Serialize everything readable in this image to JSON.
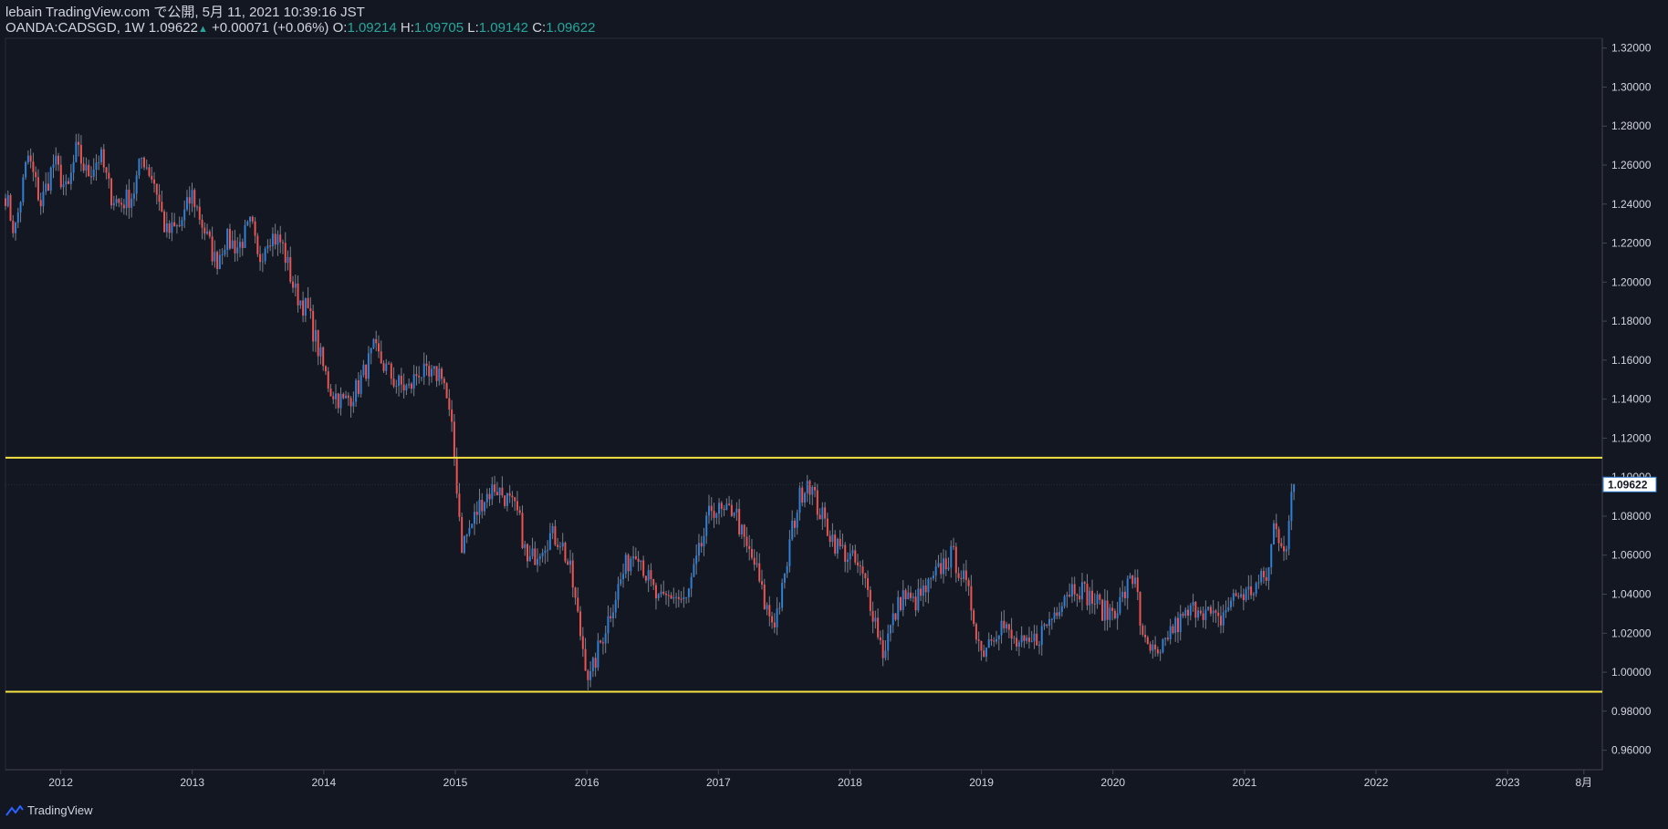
{
  "header": {
    "publisher_line": "lebain TradingView.com で公開, 5月 11, 2021 10:39:16 JST",
    "symbol": "OANDA:CADSGD",
    "interval": "1W",
    "last_price": "1.09622",
    "change": "+0.00071 (+0.06%)",
    "o_label": "O:",
    "o_value": "1.09214",
    "h_label": "H:",
    "h_value": "1.09705",
    "l_label": "L:",
    "l_value": "1.09142",
    "c_label": "C:",
    "c_value": "1.09622"
  },
  "brand": {
    "name": "TradingView"
  },
  "chart_data": {
    "type": "candlestick",
    "title": "OANDA:CADSGD, 1W",
    "x_start": 2011.58,
    "x_end": 2023.72,
    "ylim": [
      0.95,
      1.325
    ],
    "y_ticks": [
      0.96,
      0.98,
      1.0,
      1.02,
      1.04,
      1.06,
      1.08,
      1.1,
      1.12,
      1.14,
      1.16,
      1.18,
      1.2,
      1.22,
      1.24,
      1.26,
      1.28,
      1.3,
      1.32
    ],
    "x_ticks": [
      {
        "t": 2012.0,
        "label": "2012"
      },
      {
        "t": 2013.0,
        "label": "2013"
      },
      {
        "t": 2014.0,
        "label": "2014"
      },
      {
        "t": 2015.0,
        "label": "2015"
      },
      {
        "t": 2016.0,
        "label": "2016"
      },
      {
        "t": 2017.0,
        "label": "2017"
      },
      {
        "t": 2018.0,
        "label": "2018"
      },
      {
        "t": 2019.0,
        "label": "2019"
      },
      {
        "t": 2020.0,
        "label": "2020"
      },
      {
        "t": 2021.0,
        "label": "2021"
      },
      {
        "t": 2022.0,
        "label": "2022"
      },
      {
        "t": 2023.0,
        "label": "2023"
      },
      {
        "t": 2023.58,
        "label": "8月"
      }
    ],
    "last_price_label": "1.09622",
    "last_price": 1.09622,
    "horizontal_lines": [
      {
        "price": 1.11,
        "color": "#f5e342"
      },
      {
        "price": 0.99,
        "color": "#f5e342"
      }
    ],
    "colors": {
      "up": "#2f7fd6",
      "down": "#ef5350",
      "wick": "#7a7f8c",
      "last_price": "#2f7fd6"
    },
    "series_start": 2011.58,
    "bar_step": 0.01917,
    "close_anchors": [
      [
        2011.58,
        1.245
      ],
      [
        2011.65,
        1.225
      ],
      [
        2011.75,
        1.265
      ],
      [
        2011.85,
        1.24
      ],
      [
        2011.95,
        1.262
      ],
      [
        2012.05,
        1.245
      ],
      [
        2012.12,
        1.268
      ],
      [
        2012.2,
        1.255
      ],
      [
        2012.3,
        1.265
      ],
      [
        2012.38,
        1.245
      ],
      [
        2012.45,
        1.24
      ],
      [
        2012.55,
        1.245
      ],
      [
        2012.62,
        1.265
      ],
      [
        2012.72,
        1.25
      ],
      [
        2012.8,
        1.225
      ],
      [
        2012.9,
        1.228
      ],
      [
        2013.0,
        1.245
      ],
      [
        2013.1,
        1.225
      ],
      [
        2013.18,
        1.21
      ],
      [
        2013.25,
        1.222
      ],
      [
        2013.35,
        1.218
      ],
      [
        2013.45,
        1.23
      ],
      [
        2013.5,
        1.21
      ],
      [
        2013.58,
        1.225
      ],
      [
        2013.68,
        1.22
      ],
      [
        2013.78,
        1.195
      ],
      [
        2013.88,
        1.185
      ],
      [
        2014.0,
        1.155
      ],
      [
        2014.05,
        1.145
      ],
      [
        2014.15,
        1.138
      ],
      [
        2014.25,
        1.145
      ],
      [
        2014.38,
        1.165
      ],
      [
        2014.45,
        1.158
      ],
      [
        2014.55,
        1.148
      ],
      [
        2014.65,
        1.145
      ],
      [
        2014.72,
        1.155
      ],
      [
        2014.8,
        1.15
      ],
      [
        2014.9,
        1.155
      ],
      [
        2014.98,
        1.12
      ],
      [
        2015.05,
        1.065
      ],
      [
        2015.12,
        1.075
      ],
      [
        2015.2,
        1.088
      ],
      [
        2015.3,
        1.095
      ],
      [
        2015.38,
        1.09
      ],
      [
        2015.48,
        1.08
      ],
      [
        2015.55,
        1.055
      ],
      [
        2015.65,
        1.065
      ],
      [
        2015.72,
        1.07
      ],
      [
        2015.8,
        1.068
      ],
      [
        2015.88,
        1.05
      ],
      [
        2015.95,
        1.02
      ],
      [
        2016.02,
        0.995
      ],
      [
        2016.08,
        1.01
      ],
      [
        2016.15,
        1.025
      ],
      [
        2016.22,
        1.04
      ],
      [
        2016.3,
        1.055
      ],
      [
        2016.38,
        1.065
      ],
      [
        2016.45,
        1.05
      ],
      [
        2016.55,
        1.035
      ],
      [
        2016.65,
        1.04
      ],
      [
        2016.75,
        1.035
      ],
      [
        2016.85,
        1.06
      ],
      [
        2016.95,
        1.085
      ],
      [
        2017.05,
        1.08
      ],
      [
        2017.12,
        1.085
      ],
      [
        2017.2,
        1.065
      ],
      [
        2017.28,
        1.055
      ],
      [
        2017.35,
        1.035
      ],
      [
        2017.42,
        1.025
      ],
      [
        2017.5,
        1.045
      ],
      [
        2017.55,
        1.07
      ],
      [
        2017.62,
        1.09
      ],
      [
        2017.68,
        1.1
      ],
      [
        2017.75,
        1.085
      ],
      [
        2017.82,
        1.075
      ],
      [
        2017.9,
        1.065
      ],
      [
        2017.98,
        1.06
      ],
      [
        2018.05,
        1.055
      ],
      [
        2018.12,
        1.045
      ],
      [
        2018.2,
        1.025
      ],
      [
        2018.25,
        1.01
      ],
      [
        2018.32,
        1.025
      ],
      [
        2018.4,
        1.04
      ],
      [
        2018.48,
        1.035
      ],
      [
        2018.55,
        1.04
      ],
      [
        2018.62,
        1.045
      ],
      [
        2018.7,
        1.055
      ],
      [
        2018.78,
        1.06
      ],
      [
        2018.85,
        1.05
      ],
      [
        2018.92,
        1.035
      ],
      [
        2019.0,
        1.01
      ],
      [
        2019.08,
        1.02
      ],
      [
        2019.15,
        1.025
      ],
      [
        2019.25,
        1.015
      ],
      [
        2019.35,
        1.012
      ],
      [
        2019.45,
        1.02
      ],
      [
        2019.55,
        1.03
      ],
      [
        2019.62,
        1.04
      ],
      [
        2019.72,
        1.045
      ],
      [
        2019.8,
        1.04
      ],
      [
        2019.88,
        1.035
      ],
      [
        2019.95,
        1.03
      ],
      [
        2020.05,
        1.035
      ],
      [
        2020.12,
        1.045
      ],
      [
        2020.18,
        1.05
      ],
      [
        2020.22,
        1.015
      ],
      [
        2020.3,
        1.01
      ],
      [
        2020.35,
        1.005
      ],
      [
        2020.42,
        1.02
      ],
      [
        2020.5,
        1.025
      ],
      [
        2020.58,
        1.03
      ],
      [
        2020.65,
        1.035
      ],
      [
        2020.72,
        1.03
      ],
      [
        2020.8,
        1.025
      ],
      [
        2020.88,
        1.035
      ],
      [
        2020.95,
        1.04
      ],
      [
        2021.02,
        1.04
      ],
      [
        2021.1,
        1.045
      ],
      [
        2021.18,
        1.05
      ],
      [
        2021.22,
        1.075
      ],
      [
        2021.28,
        1.068
      ],
      [
        2021.32,
        1.065
      ],
      [
        2021.36,
        1.09
      ],
      [
        2021.38,
        1.09622
      ]
    ]
  }
}
